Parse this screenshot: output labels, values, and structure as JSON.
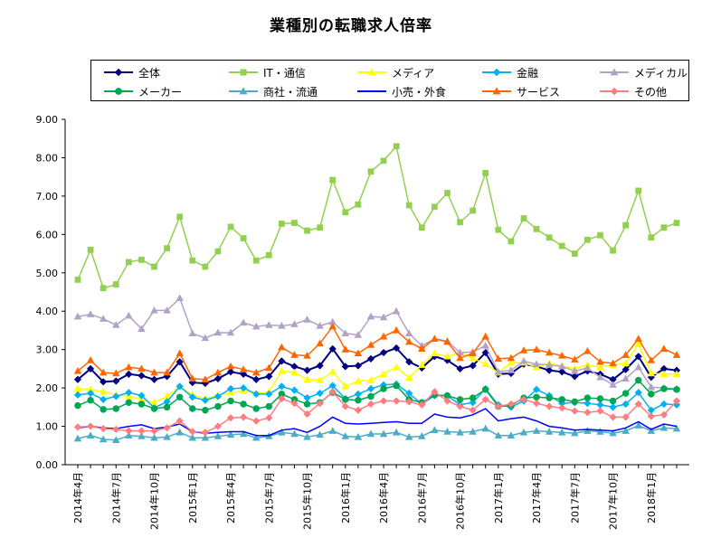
{
  "chart_data": {
    "type": "line",
    "title": "業種別の転職求人倍率",
    "ylim": [
      0,
      9
    ],
    "yticks": [
      "0.00",
      "1.00",
      "2.00",
      "3.00",
      "4.00",
      "5.00",
      "6.00",
      "7.00",
      "8.00",
      "9.00"
    ],
    "grid": false,
    "legend_position": "top",
    "x": [
      "2014年4月",
      "2014年5月",
      "2014年6月",
      "2014年7月",
      "2014年8月",
      "2014年9月",
      "2014年10月",
      "2014年11月",
      "2014年12月",
      "2015年1月",
      "2015年2月",
      "2015年3月",
      "2015年4月",
      "2015年5月",
      "2015年6月",
      "2015年7月",
      "2015年8月",
      "2015年9月",
      "2015年10月",
      "2015年11月",
      "2015年12月",
      "2016年1月",
      "2016年2月",
      "2016年3月",
      "2016年4月",
      "2016年5月",
      "2016年6月",
      "2016年7月",
      "2016年8月",
      "2016年9月",
      "2016年10月",
      "2016年11月",
      "2016年12月",
      "2017年1月",
      "2017年2月",
      "2017年3月",
      "2017年4月",
      "2017年5月",
      "2017年6月",
      "2017年7月",
      "2017年8月",
      "2017年9月",
      "2017年10月",
      "2017年11月",
      "2017年12月",
      "2018年1月",
      "2018年2月",
      "2018年3月"
    ],
    "xtick_labels": [
      {
        "index": 0,
        "label": "2014年4月"
      },
      {
        "index": 3,
        "label": "2014年7月"
      },
      {
        "index": 6,
        "label": "2014年10月"
      },
      {
        "index": 9,
        "label": "2015年1月"
      },
      {
        "index": 12,
        "label": "2015年4月"
      },
      {
        "index": 15,
        "label": "2015年7月"
      },
      {
        "index": 18,
        "label": "2015年10月"
      },
      {
        "index": 21,
        "label": "2016年1月"
      },
      {
        "index": 24,
        "label": "2016年4月"
      },
      {
        "index": 27,
        "label": "2016年7月"
      },
      {
        "index": 30,
        "label": "2016年10月"
      },
      {
        "index": 33,
        "label": "2017年1月"
      },
      {
        "index": 36,
        "label": "2017年4月"
      },
      {
        "index": 39,
        "label": "2017年7月"
      },
      {
        "index": 42,
        "label": "2017年10月"
      },
      {
        "index": 45,
        "label": "2018年1月"
      }
    ],
    "series": [
      {
        "name": "全体",
        "color": "#000080",
        "marker": "diamond",
        "values": [
          2.22,
          2.5,
          2.16,
          2.18,
          2.36,
          2.32,
          2.22,
          2.3,
          2.68,
          2.14,
          2.12,
          2.24,
          2.42,
          2.36,
          2.22,
          2.3,
          2.7,
          2.56,
          2.46,
          2.58,
          3.02,
          2.56,
          2.58,
          2.76,
          2.92,
          3.04,
          2.68,
          2.52,
          2.82,
          2.72,
          2.5,
          2.58,
          2.92,
          2.36,
          2.38,
          2.62,
          2.56,
          2.46,
          2.42,
          2.3,
          2.44,
          2.36,
          2.22,
          2.48,
          2.82,
          2.28,
          2.5,
          2.46
        ]
      },
      {
        "name": "IT・通信",
        "color": "#92D050",
        "marker": "square",
        "values": [
          4.82,
          5.6,
          4.6,
          4.7,
          5.28,
          5.34,
          5.16,
          5.64,
          6.46,
          5.32,
          5.16,
          5.56,
          6.2,
          5.9,
          5.32,
          5.46,
          6.28,
          6.3,
          6.1,
          6.18,
          7.42,
          6.58,
          6.78,
          7.64,
          7.92,
          8.3,
          6.76,
          6.18,
          6.72,
          7.08,
          6.32,
          6.62,
          7.6,
          6.12,
          5.82,
          6.42,
          6.14,
          5.92,
          5.7,
          5.5,
          5.86,
          5.98,
          5.58,
          6.24,
          7.14,
          5.92,
          6.18,
          6.3
        ]
      },
      {
        "name": "メディア",
        "color": "#FFFF00",
        "marker": "triangle",
        "values": [
          1.98,
          1.96,
          1.9,
          1.82,
          1.78,
          1.7,
          1.62,
          1.78,
          2.04,
          1.82,
          1.72,
          1.8,
          1.88,
          1.92,
          1.86,
          1.9,
          2.44,
          2.4,
          2.22,
          2.2,
          2.42,
          2.04,
          2.18,
          2.2,
          2.36,
          2.54,
          2.26,
          2.6,
          2.9,
          2.82,
          2.92,
          2.78,
          2.62,
          2.4,
          2.66,
          2.66,
          2.54,
          2.64,
          2.58,
          2.5,
          2.6,
          2.54,
          2.6,
          2.64,
          3.14,
          2.38,
          2.36,
          2.36
        ]
      },
      {
        "name": "金融",
        "color": "#00B0F0",
        "marker": "diamond",
        "values": [
          1.82,
          1.86,
          1.7,
          1.78,
          1.88,
          1.8,
          1.48,
          1.64,
          2.04,
          1.76,
          1.68,
          1.78,
          1.98,
          2.0,
          1.84,
          1.84,
          2.04,
          1.94,
          1.74,
          1.86,
          2.06,
          1.72,
          1.84,
          1.98,
          2.08,
          2.1,
          1.86,
          1.58,
          1.8,
          1.8,
          1.56,
          1.62,
          1.98,
          1.56,
          1.5,
          1.66,
          1.96,
          1.8,
          1.6,
          1.62,
          1.6,
          1.56,
          1.5,
          1.58,
          1.88,
          1.42,
          1.58,
          1.56
        ]
      },
      {
        "name": "メディカル",
        "color": "#B3A2C7",
        "marker": "triangle",
        "values": [
          3.86,
          3.92,
          3.8,
          3.64,
          3.88,
          3.54,
          4.02,
          4.02,
          4.34,
          3.42,
          3.3,
          3.44,
          3.44,
          3.7,
          3.6,
          3.64,
          3.62,
          3.66,
          3.78,
          3.62,
          3.72,
          3.42,
          3.38,
          3.86,
          3.84,
          4.0,
          3.42,
          3.1,
          3.28,
          3.22,
          2.92,
          2.94,
          3.1,
          2.42,
          2.46,
          2.7,
          2.62,
          2.6,
          2.56,
          2.44,
          2.52,
          2.28,
          2.08,
          2.24,
          2.54,
          2.02,
          2.0,
          1.98
        ]
      },
      {
        "name": "メーカー",
        "color": "#00A651",
        "marker": "circle",
        "values": [
          1.54,
          1.68,
          1.44,
          1.46,
          1.62,
          1.58,
          1.46,
          1.5,
          1.76,
          1.46,
          1.42,
          1.52,
          1.66,
          1.58,
          1.46,
          1.52,
          1.84,
          1.7,
          1.58,
          1.62,
          1.88,
          1.7,
          1.68,
          1.78,
          1.98,
          2.06,
          1.7,
          1.62,
          1.82,
          1.8,
          1.7,
          1.74,
          1.96,
          1.52,
          1.54,
          1.74,
          1.76,
          1.74,
          1.7,
          1.64,
          1.74,
          1.72,
          1.66,
          1.86,
          2.2,
          1.84,
          1.98,
          1.96
        ]
      },
      {
        "name": "商社・流通",
        "color": "#4BACC6",
        "marker": "triangle",
        "values": [
          0.68,
          0.76,
          0.66,
          0.64,
          0.76,
          0.74,
          0.7,
          0.72,
          0.84,
          0.7,
          0.7,
          0.74,
          0.78,
          0.8,
          0.7,
          0.74,
          0.84,
          0.8,
          0.72,
          0.78,
          0.88,
          0.74,
          0.72,
          0.8,
          0.8,
          0.84,
          0.72,
          0.74,
          0.9,
          0.86,
          0.84,
          0.86,
          0.94,
          0.76,
          0.76,
          0.84,
          0.88,
          0.86,
          0.84,
          0.82,
          0.88,
          0.86,
          0.82,
          0.88,
          1.02,
          0.88,
          0.96,
          0.94
        ]
      },
      {
        "name": "小売・外食",
        "color": "#0000FF",
        "marker": "line",
        "values": [
          0.96,
          1.0,
          0.96,
          0.94,
          1.0,
          1.04,
          0.94,
          0.98,
          1.06,
          0.86,
          0.82,
          0.84,
          0.86,
          0.86,
          0.76,
          0.76,
          0.9,
          0.94,
          0.84,
          1.0,
          1.24,
          1.08,
          1.06,
          1.08,
          1.1,
          1.12,
          1.08,
          1.08,
          1.32,
          1.24,
          1.22,
          1.3,
          1.46,
          1.14,
          1.2,
          1.24,
          1.14,
          1.0,
          0.96,
          0.9,
          0.92,
          0.9,
          0.88,
          0.96,
          1.12,
          0.92,
          1.06,
          1.0
        ]
      },
      {
        "name": "サービス",
        "color": "#FF6600",
        "marker": "triangle",
        "values": [
          2.44,
          2.72,
          2.4,
          2.38,
          2.54,
          2.5,
          2.4,
          2.4,
          2.9,
          2.24,
          2.22,
          2.4,
          2.56,
          2.48,
          2.4,
          2.52,
          3.06,
          2.86,
          2.84,
          3.16,
          3.6,
          3.0,
          2.9,
          3.12,
          3.34,
          3.5,
          3.2,
          3.02,
          3.28,
          3.2,
          2.78,
          2.9,
          3.34,
          2.76,
          2.78,
          2.98,
          3.0,
          2.92,
          2.84,
          2.74,
          2.96,
          2.68,
          2.64,
          2.86,
          3.28,
          2.72,
          3.02,
          2.86
        ]
      },
      {
        "name": "その他",
        "color": "#FF7C80",
        "marker": "diamond",
        "values": [
          0.98,
          1.0,
          0.94,
          0.92,
          0.88,
          0.88,
          0.88,
          0.96,
          1.14,
          0.86,
          0.84,
          1.0,
          1.22,
          1.24,
          1.14,
          1.22,
          1.72,
          1.6,
          1.32,
          1.6,
          1.9,
          1.52,
          1.42,
          1.58,
          1.66,
          1.66,
          1.64,
          1.56,
          1.9,
          1.66,
          1.52,
          1.42,
          1.7,
          1.52,
          1.58,
          1.7,
          1.6,
          1.52,
          1.48,
          1.4,
          1.36,
          1.4,
          1.24,
          1.24,
          1.58,
          1.26,
          1.3,
          1.66
        ]
      }
    ]
  }
}
